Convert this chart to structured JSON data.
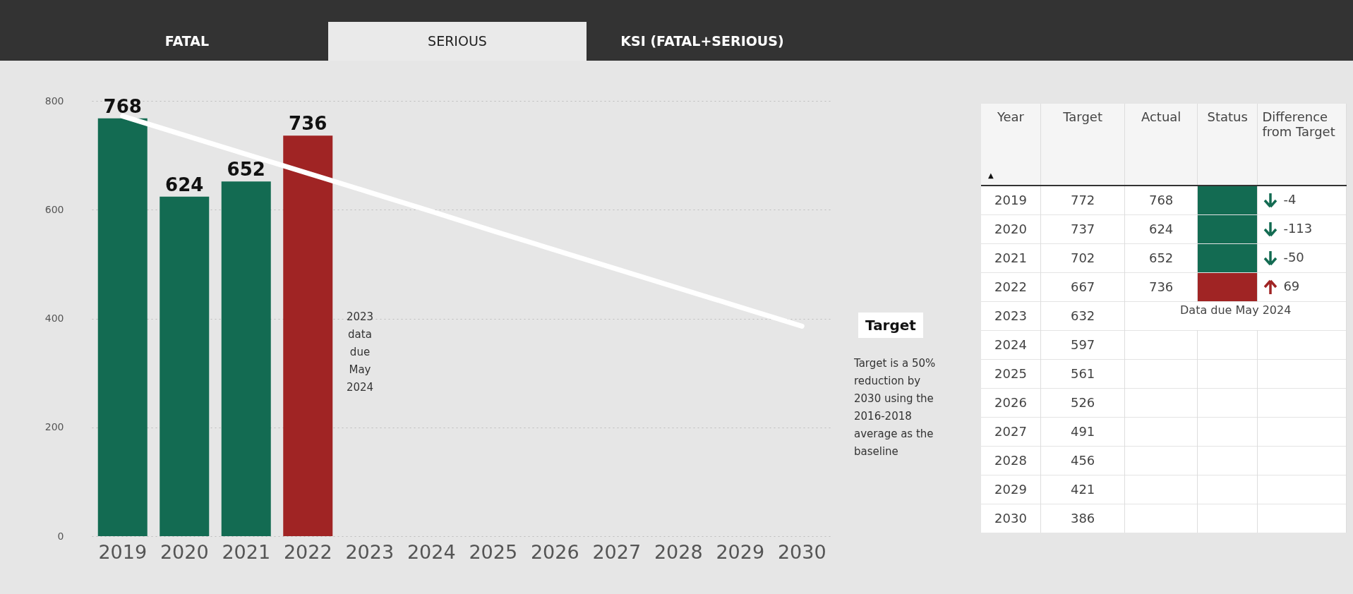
{
  "chart_data": {
    "type": "bar",
    "categories": [
      "2019",
      "2020",
      "2021",
      "2022",
      "2023",
      "2024",
      "2025",
      "2026",
      "2027",
      "2028",
      "2029",
      "2030"
    ],
    "series": [
      {
        "colors": [
          "#136b52",
          "#136b52",
          "#136b52",
          "#a02424",
          null,
          null,
          null,
          null,
          null,
          null,
          null,
          null
        ],
        "values": [
          768,
          624,
          652,
          736,
          null,
          null,
          null,
          null,
          null,
          null,
          null,
          null
        ],
        "value_labels": [
          "768",
          "624",
          "652",
          "736",
          null,
          null,
          null,
          null,
          null,
          null,
          null,
          null
        ]
      },
      {
        "type": "line",
        "name": "Target",
        "color": "#ffffff",
        "values": [
          772,
          737,
          702,
          667,
          632,
          597,
          561,
          526,
          491,
          456,
          421,
          386
        ]
      }
    ],
    "ylim": [
      0,
      800
    ],
    "yticks": [
      0,
      200,
      400,
      600,
      800
    ],
    "grid": "y",
    "annotations": [
      "FATAL",
      "SERIOUS",
      "KSI (FATAL+SERIOUS)",
      "2023 data due May 2024",
      "Target is a 50% reduction by 2030 using the 2016-2018 average as the baseline",
      "▲",
      "Year",
      "Target",
      "Actual",
      "Status",
      "Difference from Target",
      "Data due May 2024",
      "772",
      "768",
      "-4",
      "737",
      "624",
      "-113",
      "702",
      "652",
      "-50",
      "667",
      "736",
      "69",
      "632",
      "597",
      "561",
      "526",
      "491",
      "456",
      "421",
      "386"
    ]
  }
}
